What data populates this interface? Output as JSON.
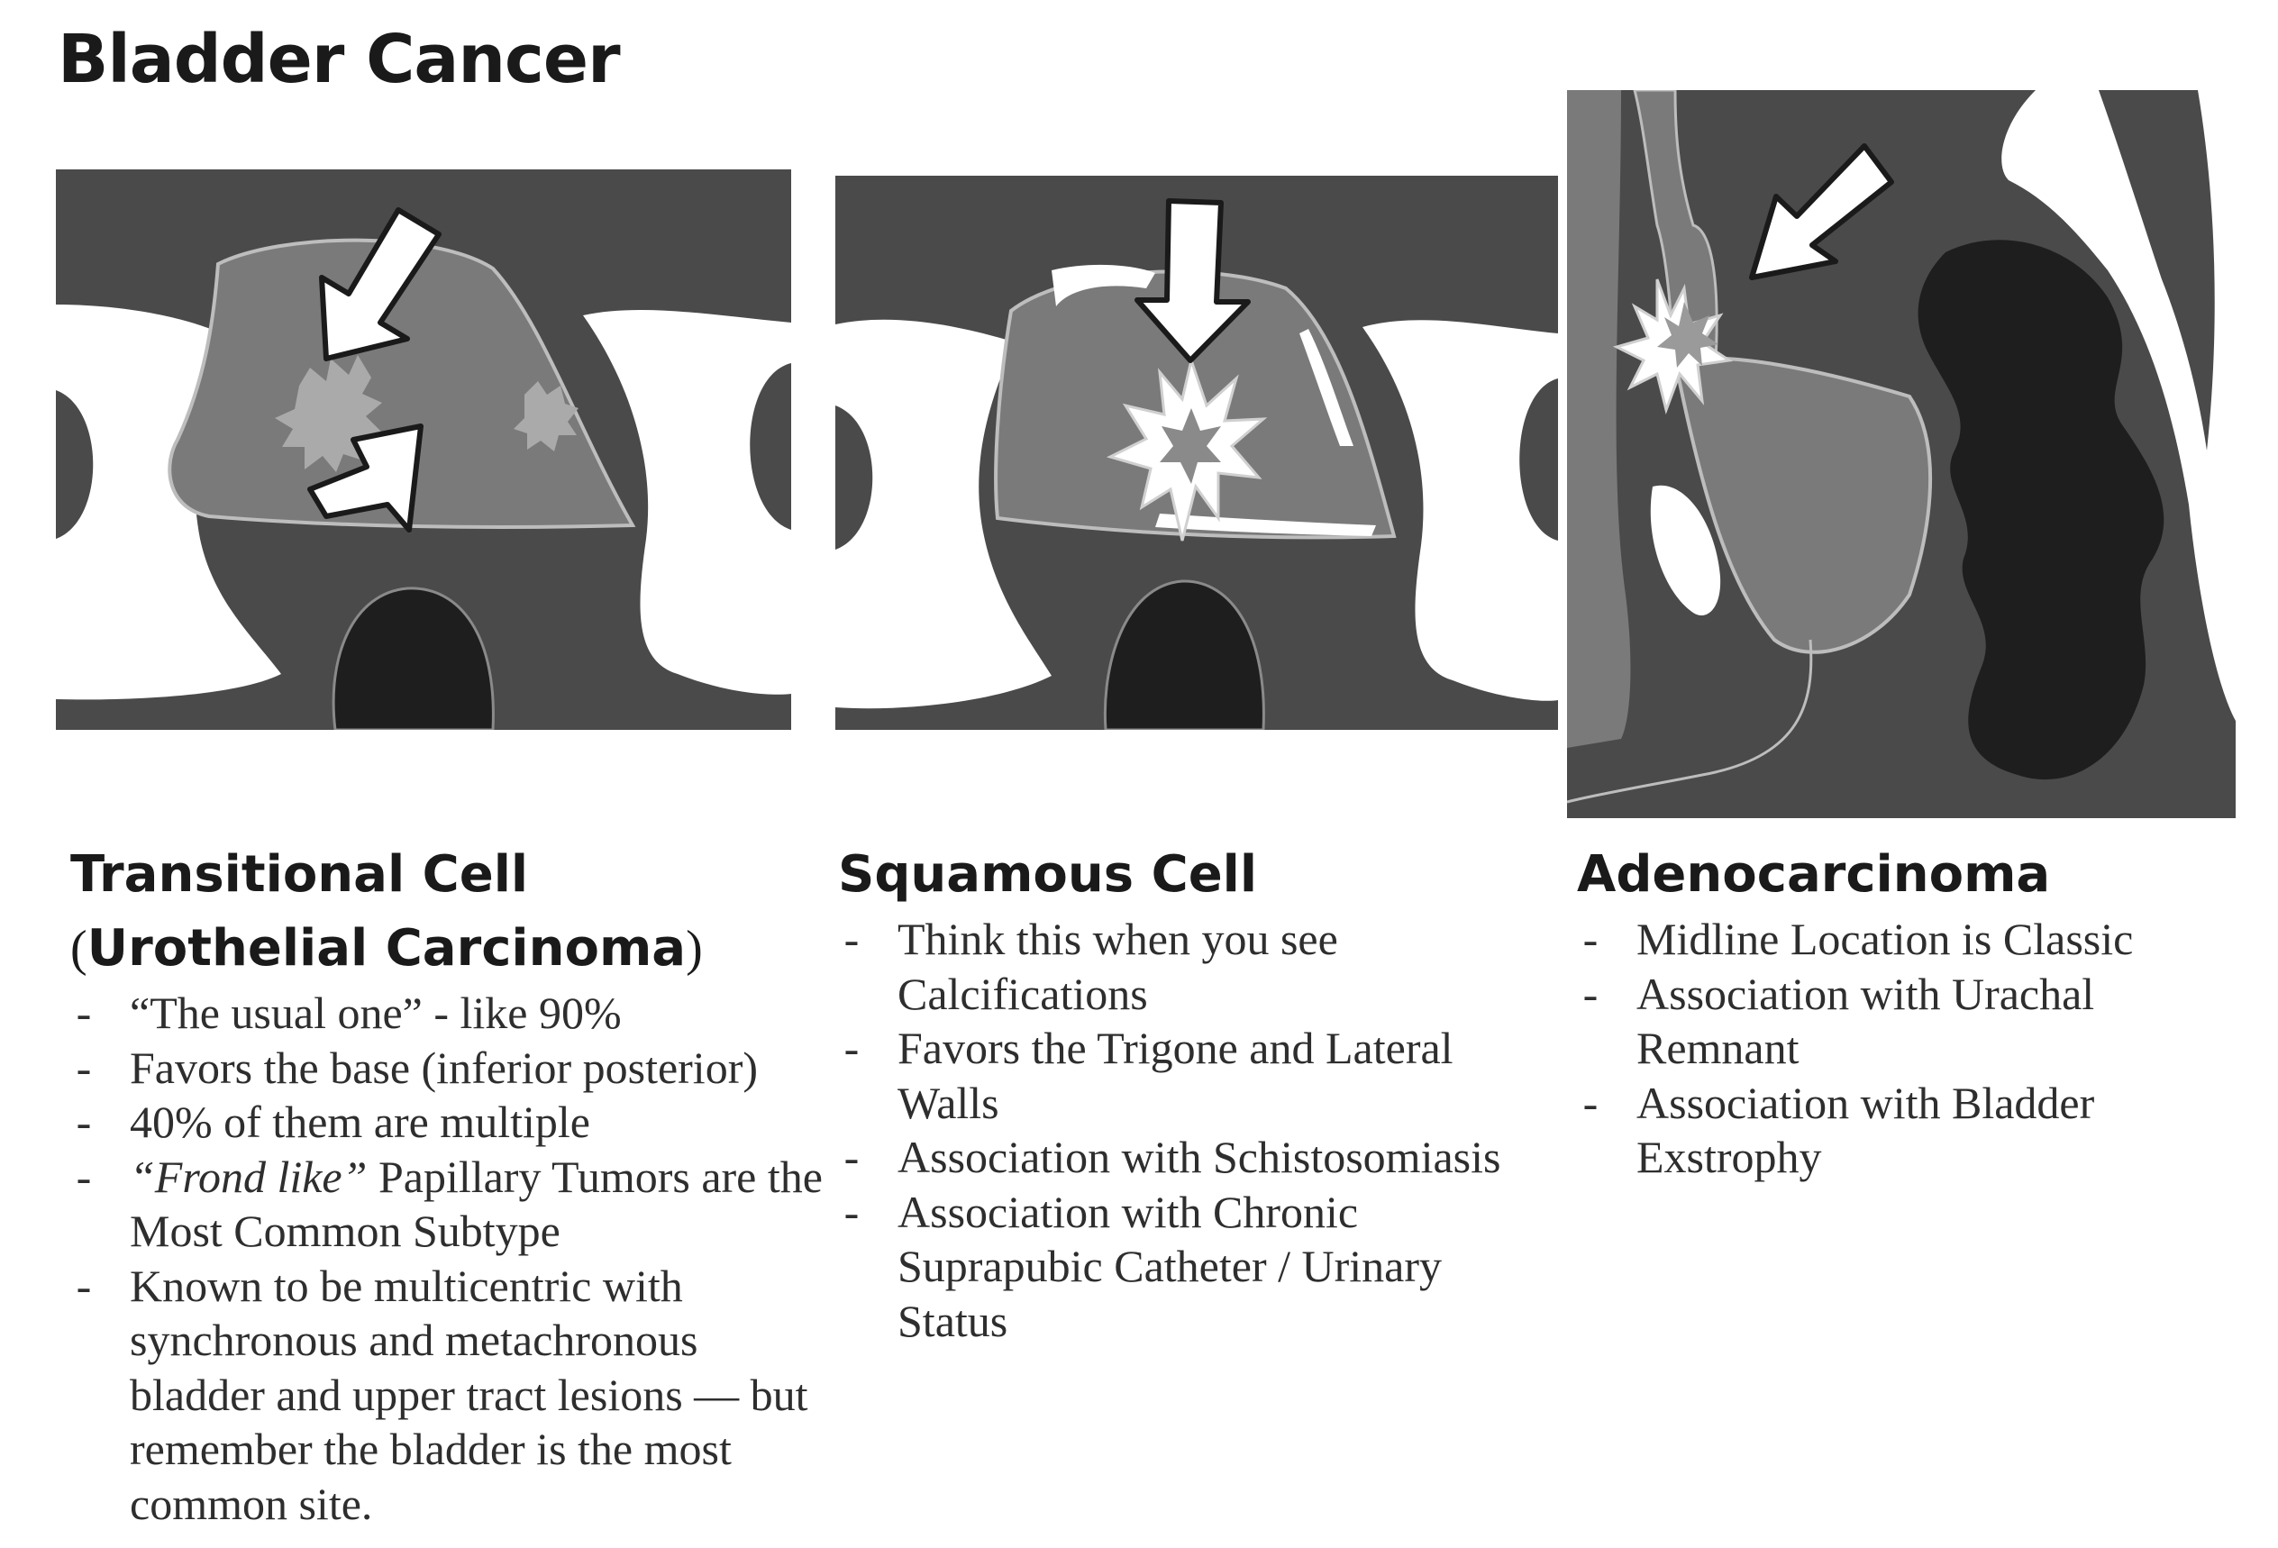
{
  "page_title": "Bladder Cancer",
  "columns": [
    {
      "heading_line1": "Transitional Cell",
      "heading_line2_open": "(",
      "heading_line2": "Urothelial Carcinoma",
      "heading_line2_close": ")",
      "bullets": [
        {
          "text": "“The usual one” - like 90%"
        },
        {
          "text": "Favors the base (inferior posterior)"
        },
        {
          "text": "40% of them are multiple"
        },
        {
          "italic": "“Frond like”",
          "text": " Papillary Tumors are the Most Common Subtype"
        },
        {
          "text": "Known to be multicentric with synchronous and metachronous bladder and upper tract lesions — but remember the bladder is the most common site."
        }
      ]
    },
    {
      "heading": "Squamous Cell",
      "bullets": [
        {
          "text": "Think this when you see Calcifications"
        },
        {
          "text": "Favors the Trigone and Lateral Walls"
        },
        {
          "text": "Association with Schistosomiasis"
        },
        {
          "text": "Association with Chronic Suprapubic Catheter / Urinary Status"
        }
      ]
    },
    {
      "heading": "Adenocarcinoma",
      "bullets": [
        {
          "text": "Midline Location is Classic"
        },
        {
          "text": "Association with Urachal Remnant"
        },
        {
          "text": "Association with Bladder Exstrophy"
        }
      ]
    }
  ],
  "colors": {
    "background": "#4a4a4a",
    "bone": "#ffffff",
    "bladder": "#7a7a7a",
    "bladder_outline": "#bdbdbd",
    "papillary_tumor": "#aaaaaa",
    "rectum": "#1e1e1e",
    "arrow_fill": "#ffffff",
    "arrow_stroke": "#1a1a1a"
  },
  "figures": [
    {
      "view": "axial",
      "icons": [
        "arrow-icon",
        "arrow-icon",
        "papillary-tumor-icon",
        "papillary-tumor-icon"
      ]
    },
    {
      "view": "axial",
      "icons": [
        "arrow-icon",
        "calcification-burst-icon"
      ]
    },
    {
      "view": "sagittal",
      "icons": [
        "arrow-icon",
        "calcification-burst-icon"
      ]
    }
  ]
}
